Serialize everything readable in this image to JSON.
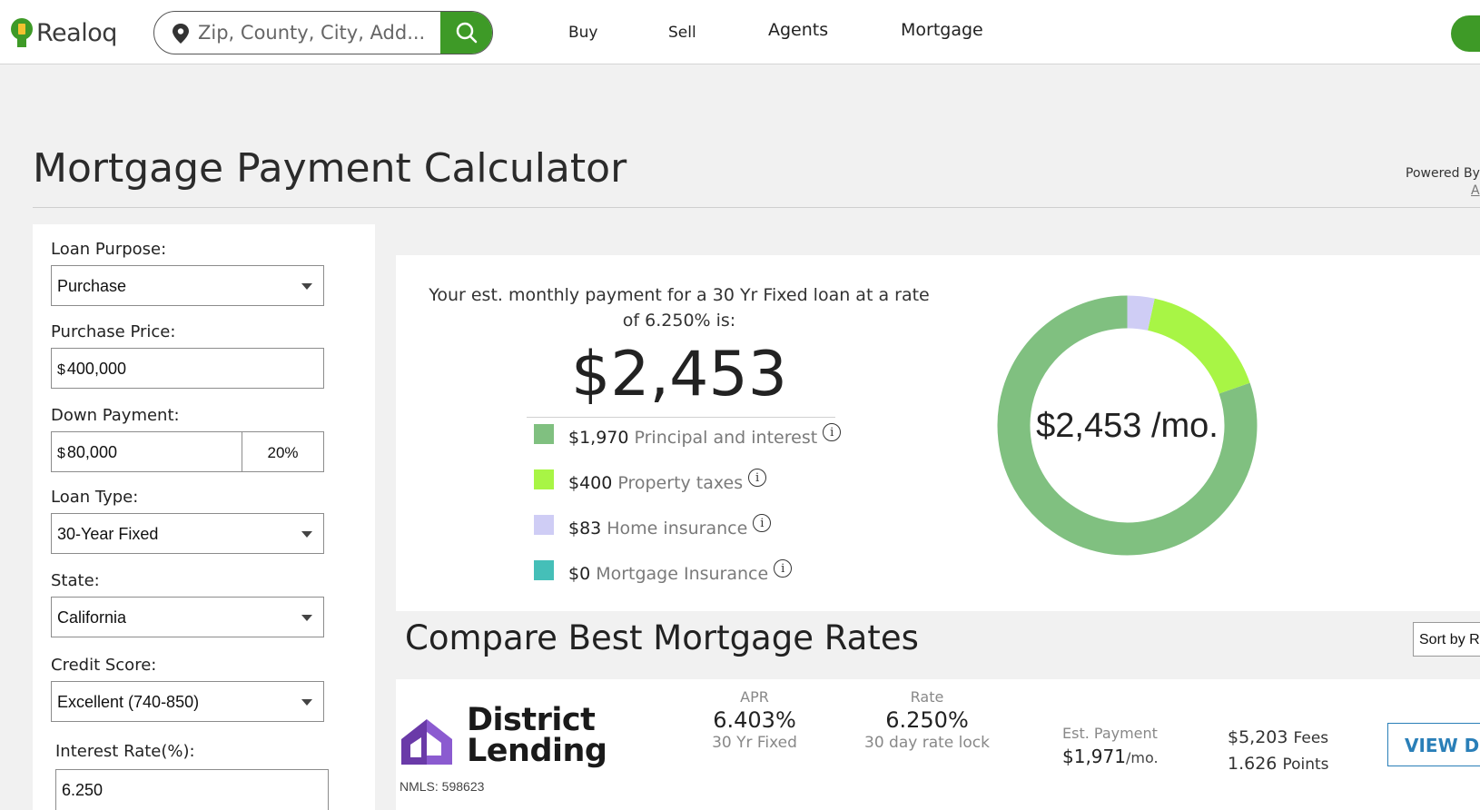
{
  "header": {
    "logo_text": "Realoq",
    "search_placeholder": "Zip, County, City, Add...",
    "nav": [
      "Buy",
      "Sell",
      "Agents",
      "Mortgage"
    ],
    "accent_color": "#3e9a27"
  },
  "page": {
    "title": "Mortgage Payment Calculator",
    "powered_by": "Powered By",
    "powered_link": "A"
  },
  "form": {
    "loan_purpose_label": "Loan Purpose:",
    "loan_purpose_value": "Purchase",
    "purchase_price_label": "Purchase Price:",
    "currency": "$",
    "purchase_price_value": "400,000",
    "down_payment_label": "Down Payment:",
    "down_payment_value": "80,000",
    "down_payment_pct": "20%",
    "loan_type_label": "Loan Type:",
    "loan_type_value": "30-Year Fixed",
    "state_label": "State:",
    "state_value": "California",
    "credit_score_label": "Credit Score:",
    "credit_score_value": "Excellent (740-850)",
    "interest_rate_label": "Interest Rate(%):",
    "interest_rate_value": "6.250"
  },
  "payment": {
    "intro": "Your est. monthly payment for a 30 Yr Fixed loan at a rate of 6.250% is:",
    "total": "$2,453",
    "donut_label": "$2,453 /mo.",
    "breakdown": [
      {
        "amount": "$1,970",
        "label": "Principal and interest",
        "value": 1970,
        "color": "#80c080"
      },
      {
        "amount": "$400",
        "label": "Property taxes",
        "value": 400,
        "color": "#a8f545"
      },
      {
        "amount": "$83",
        "label": "Home insurance",
        "value": 83,
        "color": "#cfcdf5"
      },
      {
        "amount": "$0",
        "label": "Mortgage Insurance",
        "value": 0,
        "color": "#45bfb8"
      }
    ]
  },
  "compare": {
    "title": "Compare Best Mortgage Rates",
    "sort_label": "Sort by R"
  },
  "lender": {
    "name_line1": "District",
    "name_line2": "Lending",
    "nmls": "NMLS: 598623",
    "apr_label": "APR",
    "apr_value": "6.403%",
    "apr_sub": "30 Yr Fixed",
    "rate_label": "Rate",
    "rate_value": "6.250%",
    "rate_sub": "30 day rate lock",
    "est_label": "Est. Payment",
    "est_value": "$1,971",
    "est_unit": "/mo.",
    "fees_value": "$5,203",
    "fees_unit": "Fees",
    "points_value": "1.626",
    "points_unit": "Points",
    "view_button": "VIEW DE"
  }
}
